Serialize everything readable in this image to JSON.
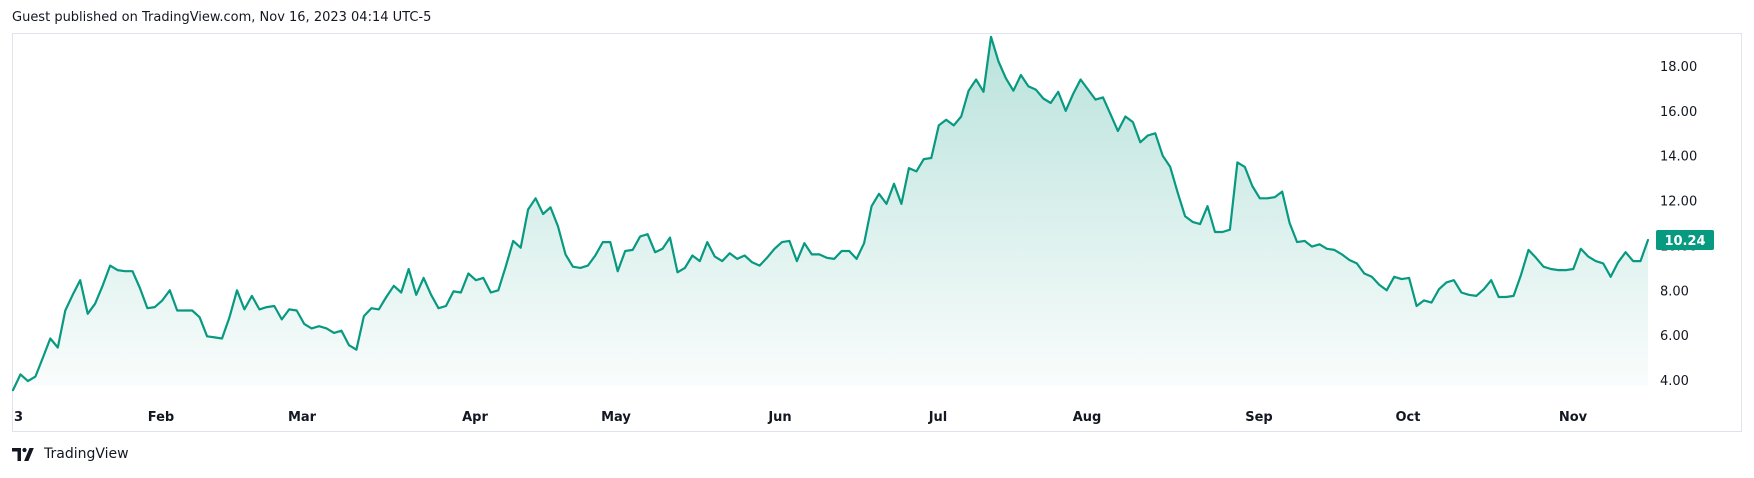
{
  "header": {
    "published_text": "Guest published on TradingView.com, Nov 16, 2023 04:14 UTC-5"
  },
  "footer": {
    "brand": "TradingView"
  },
  "colors": {
    "line": "#089981",
    "area_top": "#089981",
    "price_badge_bg": "#089981",
    "price_badge_text": "#ffffff",
    "frame_border": "#e0e3eb"
  },
  "chart_data": {
    "type": "area",
    "title": "",
    "xlabel": "",
    "ylabel": "",
    "ylim": [
      3.4,
      19.2
    ],
    "y_ticks": [
      "4.00",
      "6.00",
      "8.00",
      "10.00",
      "12.00",
      "14.00",
      "16.00",
      "18.00"
    ],
    "x_ticks": [
      "3",
      "Feb",
      "Mar",
      "Apr",
      "May",
      "Jun",
      "Jul",
      "Aug",
      "Sep",
      "Oct",
      "Nov"
    ],
    "last_value_label": "10.24",
    "grid": false,
    "series": [
      {
        "values": [
          3.55,
          4.25,
          3.95,
          4.15,
          5.0,
          5.85,
          5.45,
          7.1,
          7.8,
          8.45,
          6.95,
          7.4,
          8.2,
          9.1,
          8.9,
          8.85,
          8.85,
          8.1,
          7.2,
          7.25,
          7.55,
          8.0,
          7.1,
          7.1,
          7.1,
          6.8,
          5.95,
          5.9,
          5.85,
          6.8,
          8.0,
          7.15,
          7.75,
          7.15,
          7.25,
          7.3,
          6.7,
          7.15,
          7.1,
          6.5,
          6.3,
          6.4,
          6.3,
          6.1,
          6.2,
          5.55,
          5.35,
          6.85,
          7.2,
          7.15,
          7.7,
          8.2,
          7.9,
          8.95,
          7.8,
          8.55,
          7.8,
          7.2,
          7.3,
          7.95,
          7.9,
          8.75,
          8.45,
          8.55,
          7.9,
          8.0,
          9.05,
          10.2,
          9.9,
          11.6,
          12.1,
          11.4,
          11.7,
          10.85,
          9.6,
          9.05,
          9.0,
          9.1,
          9.55,
          10.15,
          10.15,
          8.85,
          9.75,
          9.8,
          10.4,
          10.5,
          9.7,
          9.85,
          10.35,
          8.8,
          9.0,
          9.55,
          9.3,
          10.15,
          9.5,
          9.3,
          9.65,
          9.4,
          9.55,
          9.25,
          9.1,
          9.45,
          9.85,
          10.15,
          10.2,
          9.3,
          10.1,
          9.6,
          9.6,
          9.45,
          9.4,
          9.75,
          9.75,
          9.4,
          10.1,
          11.75,
          12.3,
          11.85,
          12.75,
          11.85,
          13.45,
          13.3,
          13.85,
          13.9,
          15.35,
          15.6,
          15.35,
          15.75,
          16.9,
          17.4,
          16.85,
          19.3,
          18.2,
          17.45,
          16.9,
          17.6,
          17.1,
          16.95,
          16.55,
          16.35,
          16.85,
          16.0,
          16.75,
          17.4,
          16.95,
          16.5,
          16.6,
          15.85,
          15.1,
          15.75,
          15.5,
          14.6,
          14.9,
          15.0,
          14.0,
          13.5,
          12.35,
          11.3,
          11.05,
          10.95,
          11.75,
          10.6,
          10.6,
          10.7,
          13.7,
          13.5,
          12.65,
          12.1,
          12.1,
          12.15,
          12.4,
          11.0,
          10.15,
          10.2,
          9.95,
          10.05,
          9.85,
          9.8,
          9.6,
          9.35,
          9.2,
          8.75,
          8.6,
          8.25,
          8.0,
          8.6,
          8.5,
          8.55,
          7.3,
          7.55,
          7.45,
          8.05,
          8.35,
          8.45,
          7.9,
          7.8,
          7.75,
          8.05,
          8.45,
          7.7,
          7.7,
          7.75,
          8.7,
          9.8,
          9.45,
          9.05,
          8.95,
          8.9,
          8.9,
          8.95,
          9.85,
          9.5,
          9.3,
          9.2,
          8.6,
          9.25,
          9.7,
          9.3,
          9.3,
          10.24
        ]
      }
    ]
  }
}
